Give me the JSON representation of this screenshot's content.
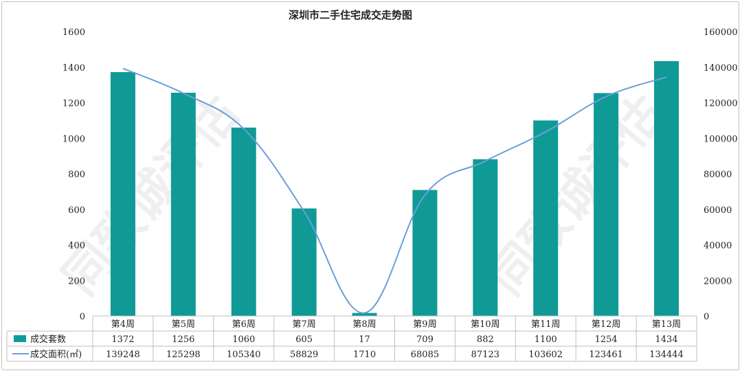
{
  "chart_data": {
    "type": "bar",
    "title": "深圳市二手住宅成交走势图",
    "categories": [
      "第4周",
      "第5周",
      "第6周",
      "第7周",
      "第8周",
      "第9周",
      "第10周",
      "第11周",
      "第12周",
      "第13周"
    ],
    "series": [
      {
        "name": "成交套数",
        "type": "bar",
        "axis": "left",
        "color": "#0f9a96",
        "values": [
          1372,
          1256,
          1060,
          605,
          17,
          709,
          882,
          1100,
          1254,
          1434
        ]
      },
      {
        "name": "成交面积(㎡)",
        "type": "line",
        "axis": "right",
        "color": "#6a9fd8",
        "values": [
          139248,
          125298,
          105340,
          58829,
          1710,
          68085,
          87123,
          103602,
          123461,
          134444
        ]
      }
    ],
    "y_left": {
      "min": 0,
      "max": 1600,
      "step": 200
    },
    "y_right": {
      "min": 0,
      "max": 160000,
      "step": 20000
    },
    "grid": false,
    "legend": "data-table"
  }
}
